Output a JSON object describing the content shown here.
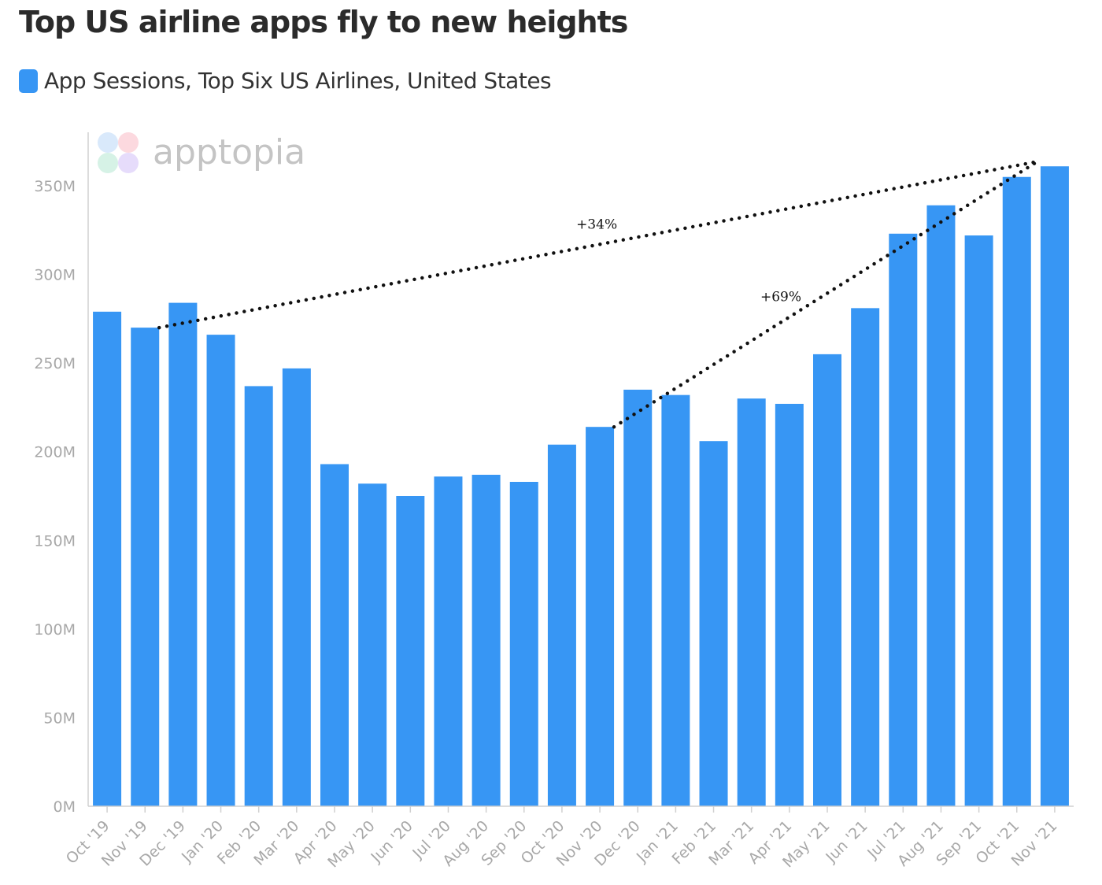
{
  "title": "Top US airline apps fly to new heights",
  "watermark": "apptopia",
  "colors": {
    "bar": "#3796f4",
    "axis": "#d0d0d0",
    "text": "#2b2b2b",
    "tick": "#a8a8a8"
  },
  "chart_data": {
    "type": "bar",
    "title": "Top US airline apps fly to new heights",
    "xlabel": "",
    "ylabel": "",
    "ylim": [
      0,
      380
    ],
    "yticks": [
      0,
      50,
      100,
      150,
      200,
      250,
      300,
      350
    ],
    "ytick_labels": [
      "0M",
      "50M",
      "100M",
      "150M",
      "200M",
      "250M",
      "300M",
      "350M"
    ],
    "grid": false,
    "legend_position": "top-left",
    "categories": [
      "Oct '19",
      "Nov '19",
      "Dec '19",
      "Jan '20",
      "Feb '20",
      "Mar '20",
      "Apr '20",
      "May '20",
      "Jun '20",
      "Jul '20",
      "Aug '20",
      "Sep '20",
      "Oct '20",
      "Nov '20",
      "Dec '20",
      "Jan '21",
      "Feb '21",
      "Mar '21",
      "Apr '21",
      "May '21",
      "Jun '21",
      "Jul '21",
      "Aug '21",
      "Sep '21",
      "Oct '21",
      "Nov '21"
    ],
    "series": [
      {
        "name": "App Sessions, Top Six US Airlines, United States",
        "unit": "M",
        "values": [
          279,
          270,
          284,
          266,
          237,
          247,
          193,
          182,
          175,
          186,
          187,
          183,
          204,
          214,
          235,
          232,
          206,
          230,
          227,
          255,
          281,
          323,
          339,
          322,
          355,
          361
        ]
      }
    ],
    "annotations": [
      {
        "label": "+34%",
        "from_category": "Nov '19",
        "from_value": 270,
        "to_category": "Nov '21",
        "to_value": 361,
        "style": "dotted"
      },
      {
        "label": "+69%",
        "from_category": "Nov '20",
        "from_value": 214,
        "to_category": "Nov '21",
        "to_value": 361,
        "style": "dotted"
      }
    ]
  }
}
